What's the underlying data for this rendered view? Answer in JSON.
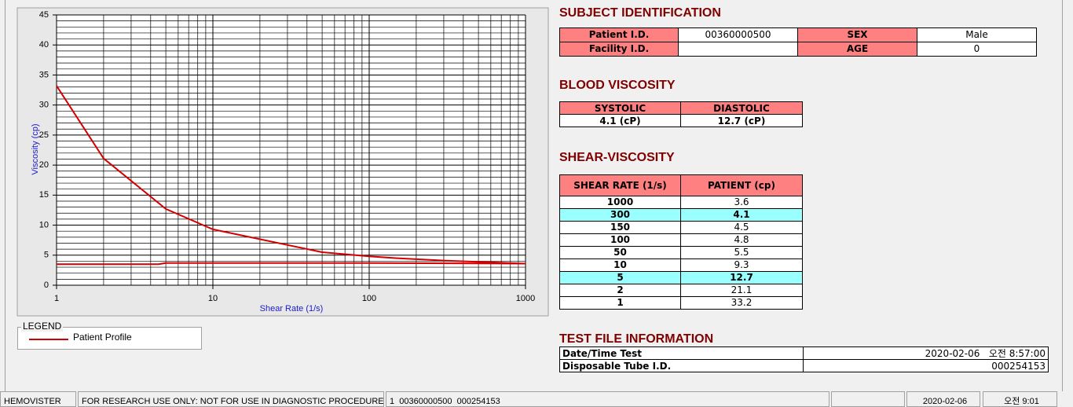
{
  "chart_data": {
    "type": "line",
    "x": [
      1,
      2,
      5,
      10,
      50,
      100,
      150,
      300,
      1000,
      100,
      10,
      5,
      4.5,
      1
    ],
    "series": [
      {
        "name": "Patient Profile",
        "color": "#d40000",
        "values": [
          33.2,
          21.1,
          12.7,
          9.3,
          5.5,
          4.8,
          4.5,
          4.1,
          3.6,
          3.7,
          3.7,
          3.7,
          3.5,
          3.5
        ]
      }
    ],
    "xlabel": "Shear Rate (1/s)",
    "ylabel": "Viscosity (cp)",
    "xlim": [
      1,
      1000
    ],
    "ylim": [
      0,
      45
    ],
    "xticks": [
      1,
      10,
      100,
      1000
    ],
    "yticks": [
      0,
      5,
      10,
      15,
      20,
      25,
      30,
      35,
      40,
      45
    ],
    "log_x": true,
    "grid": true,
    "minor_grid": true
  },
  "legend": {
    "title": "LEGEND"
  },
  "subject_identification": {
    "title": "SUBJECT IDENTIFICATION",
    "rows": [
      {
        "label": "Patient I.D.",
        "value": "00360000500",
        "label2": "SEX",
        "value2": "Male"
      },
      {
        "label": "Facility I.D.",
        "label2": "AGE",
        "value2": 0
      }
    ]
  },
  "blood_viscosity": {
    "title": "BLOOD VISCOSITY",
    "headers": [
      "SYSTOLIC",
      "DIASTOLIC"
    ],
    "values": [
      "4.1 (cP)",
      "12.7 (cP)"
    ]
  },
  "shear_viscosity": {
    "title": "SHEAR-VISCOSITY",
    "headers": [
      "SHEAR RATE (1/s)",
      "PATIENT (cp)"
    ],
    "rows": [
      [
        1000,
        3.6
      ],
      [
        300,
        4.1
      ],
      [
        150,
        4.5
      ],
      [
        100,
        4.8
      ],
      [
        50,
        5.5
      ],
      [
        10,
        9.3
      ],
      [
        5,
        12.7
      ],
      [
        2,
        21.1
      ],
      [
        1,
        33.2
      ]
    ],
    "highlighted_rows": [
      1,
      6
    ]
  },
  "test_file_information": {
    "title": "TEST FILE INFORMATION",
    "rows": [
      [
        "Date/Time Test",
        "2020-02-06   오전 8:57:00"
      ],
      [
        "Disposable Tube I.D.",
        "000254153"
      ]
    ]
  },
  "status_bar": [
    "HEMOVISTER",
    "FOR RESEARCH USE ONLY: NOT FOR USE IN DIAGNOSTIC PROCEDURES",
    "1  00360000500  000254153",
    "2020-02-06",
    "오전 9:01"
  ]
}
